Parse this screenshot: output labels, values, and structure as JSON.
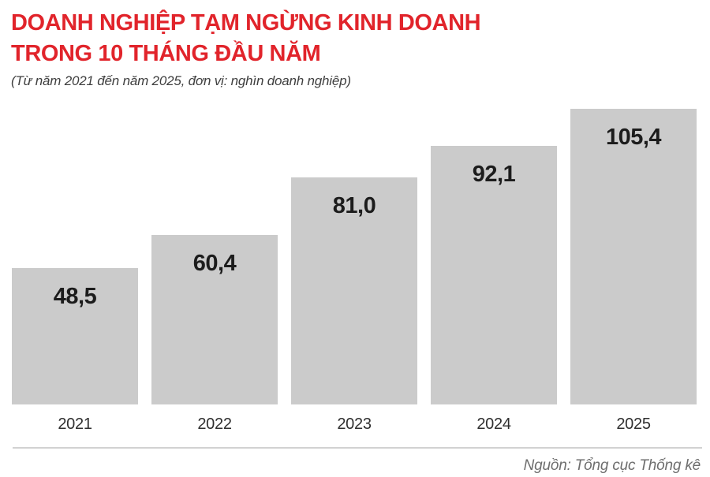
{
  "header": {
    "title_line1": "DOANH NGHIỆP TẠM NGỪNG KINH DOANH",
    "title_line2": "TRONG 10 THÁNG ĐẦU NĂM",
    "subtitle": "(Từ năm 2021 đến năm 2025, đơn vị: nghìn doanh nghiệp)"
  },
  "chart_data": {
    "type": "bar",
    "title": "DOANH NGHIỆP TẠM NGỪNG KINH DOANH TRONG 10 THÁNG ĐẦU NĂM",
    "subtitle": "(Từ năm 2021 đến năm 2025, đơn vị: nghìn doanh nghiệp)",
    "categories": [
      "2021",
      "2022",
      "2023",
      "2024",
      "2025"
    ],
    "values": [
      48.5,
      60.4,
      81.0,
      92.1,
      105.4
    ],
    "value_labels": [
      "48,5",
      "60,4",
      "81,0",
      "92,1",
      "105,4"
    ],
    "unit": "nghìn doanh nghiệp",
    "xlabel": "",
    "ylabel": "nghìn doanh nghiệp",
    "ylim": [
      0,
      105.4
    ],
    "axes": "hidden",
    "grid": false,
    "legend": false,
    "bar_color": "#cbcbcb",
    "value_label_color": "#1c1c1c"
  },
  "footer": {
    "source": "Nguồn: Tổng cục Thống kê"
  },
  "colors": {
    "title_red": "#e1242b",
    "bar_gray": "#cbcbcb",
    "divider_gray": "#d2d2d2",
    "source_gray": "#6e6e6e"
  }
}
